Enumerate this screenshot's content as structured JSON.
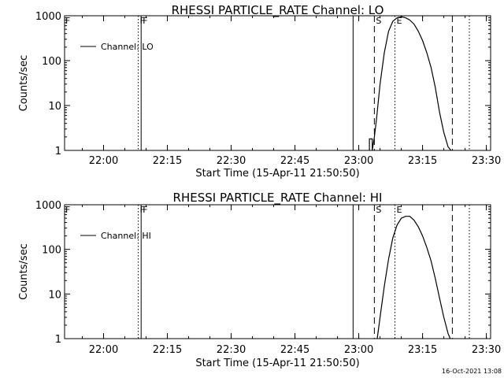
{
  "chart_data": [
    {
      "type": "line",
      "title": "RHESSI PARTICLE_RATE Channel: LO",
      "xlabel": "Start Time (15-Apr-11 21:50:50)",
      "ylabel": "Counts/sec",
      "y_scale": "log",
      "xlim": [
        "21:50:50",
        "23:31:00"
      ],
      "ylim": [
        1,
        1000
      ],
      "x_ticks": [
        "22:00",
        "22:15",
        "22:30",
        "22:45",
        "23:00",
        "23:15",
        "23:30"
      ],
      "y_ticks": [
        "1",
        "10",
        "100",
        "1000"
      ],
      "legend": {
        "placement": "top-left",
        "entries": [
          "Channel: LO"
        ]
      },
      "markers": [
        {
          "label": "F",
          "time": "22:08:50",
          "style": "solid"
        },
        {
          "label": "F",
          "time": "22:08:10",
          "style": "dotted"
        },
        {
          "label": "",
          "time": "22:58:40",
          "style": "solid"
        },
        {
          "label": "S",
          "time": "23:03:40",
          "style": "dashed"
        },
        {
          "label": "E",
          "time": "23:08:30",
          "style": "dotted"
        },
        {
          "label": "",
          "time": "23:22:00",
          "style": "dashed"
        },
        {
          "label": "",
          "time": "23:26:00",
          "style": "dotted"
        }
      ],
      "series": [
        {
          "x": [
            "23:02:30",
            "23:02:30",
            "23:03:10",
            "23:03:10",
            "23:03:40",
            "23:04:10",
            "23:05:00",
            "23:06:00",
            "23:07:00",
            "23:08:00",
            "23:09:00",
            "23:10:00",
            "23:11:00",
            "23:12:00",
            "23:13:00",
            "23:14:00",
            "23:15:00",
            "23:16:00",
            "23:17:00",
            "23:18:00",
            "23:19:00",
            "23:20:00",
            "23:21:00",
            "23:21:40"
          ],
          "y": [
            1,
            1.8,
            1.8,
            1,
            2,
            5,
            30,
            150,
            450,
            750,
            900,
            950,
            900,
            800,
            650,
            450,
            280,
            150,
            70,
            25,
            7,
            2.5,
            1.2,
            1
          ]
        }
      ]
    },
    {
      "type": "line",
      "title": "RHESSI PARTICLE_RATE Channel: HI",
      "xlabel": "Start Time (15-Apr-11 21:50:50)",
      "ylabel": "Counts/sec",
      "y_scale": "log",
      "xlim": [
        "21:50:50",
        "23:31:00"
      ],
      "ylim": [
        1,
        1000
      ],
      "x_ticks": [
        "22:00",
        "22:15",
        "22:30",
        "22:45",
        "23:00",
        "23:15",
        "23:30"
      ],
      "y_ticks": [
        "1",
        "10",
        "100",
        "1000"
      ],
      "legend": {
        "placement": "top-left",
        "entries": [
          "Channel: HI"
        ]
      },
      "markers": [
        {
          "label": "F",
          "time": "22:08:50",
          "style": "solid"
        },
        {
          "label": "F",
          "time": "22:08:10",
          "style": "dotted"
        },
        {
          "label": "",
          "time": "22:58:40",
          "style": "solid"
        },
        {
          "label": "S",
          "time": "23:03:40",
          "style": "dashed"
        },
        {
          "label": "E",
          "time": "23:08:30",
          "style": "dotted"
        },
        {
          "label": "",
          "time": "23:22:00",
          "style": "dashed"
        },
        {
          "label": "",
          "time": "23:26:00",
          "style": "dotted"
        }
      ],
      "series": [
        {
          "x": [
            "23:04:20",
            "23:05:00",
            "23:06:00",
            "23:07:00",
            "23:08:00",
            "23:09:00",
            "23:10:00",
            "23:11:00",
            "23:12:00",
            "23:13:00",
            "23:14:00",
            "23:15:00",
            "23:16:00",
            "23:17:00",
            "23:18:00",
            "23:19:00",
            "23:20:00",
            "23:21:00",
            "23:21:30"
          ],
          "y": [
            1,
            3,
            15,
            60,
            180,
            350,
            500,
            550,
            550,
            450,
            320,
            200,
            110,
            55,
            22,
            8,
            3,
            1.3,
            1
          ]
        }
      ]
    }
  ],
  "footer": {
    "date_stamp": "16-Oct-2021 13:08"
  }
}
